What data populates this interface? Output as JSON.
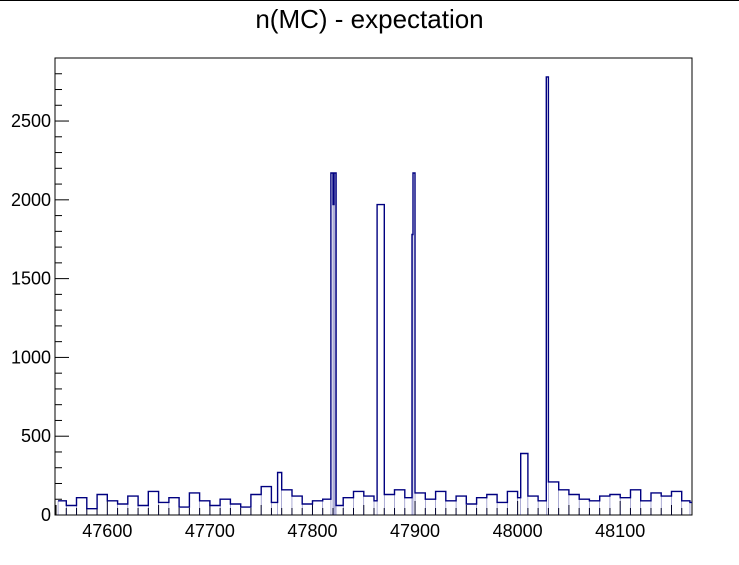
{
  "chart_data": {
    "type": "line",
    "title": "n(MC) - expectation",
    "xlabel": "",
    "ylabel": "",
    "xlim": [
      47549,
      48170
    ],
    "ylim": [
      0,
      2900
    ],
    "x_ticks": [
      47600,
      47700,
      47800,
      47900,
      48000,
      48100
    ],
    "y_ticks": [
      0,
      500,
      1000,
      1500,
      2000,
      2500
    ],
    "grid": false,
    "colors": {
      "series": "#000080",
      "axes": "#000000",
      "background": "#ffffff"
    },
    "series": [
      {
        "style": "histogram-step",
        "x": [
          47552,
          47560,
          47570,
          47580,
          47590,
          47600,
          47610,
          47620,
          47630,
          47640,
          47650,
          47660,
          47670,
          47680,
          47690,
          47700,
          47710,
          47720,
          47730,
          47740,
          47750,
          47760,
          47766,
          47770,
          47780,
          47790,
          47800,
          47810,
          47818,
          47820,
          47821,
          47822,
          47823,
          47830,
          47840,
          47850,
          47860,
          47863,
          47870,
          47880,
          47890,
          47897,
          47898,
          47900,
          47910,
          47920,
          47930,
          47940,
          47950,
          47960,
          47970,
          47980,
          47990,
          48000,
          48003,
          48010,
          48020,
          48028,
          48030,
          48040,
          48050,
          48060,
          48070,
          48080,
          48090,
          48100,
          48110,
          48120,
          48130,
          48140,
          48150,
          48160,
          48168
        ],
        "y": [
          90,
          60,
          110,
          40,
          130,
          90,
          70,
          120,
          60,
          150,
          80,
          110,
          50,
          140,
          90,
          60,
          100,
          70,
          50,
          130,
          180,
          80,
          270,
          160,
          120,
          70,
          90,
          100,
          2170,
          1970,
          2170,
          2170,
          60,
          110,
          150,
          120,
          90,
          1970,
          130,
          160,
          110,
          1780,
          2170,
          140,
          100,
          150,
          90,
          120,
          70,
          110,
          130,
          80,
          150,
          110,
          390,
          120,
          90,
          2780,
          210,
          160,
          130,
          100,
          90,
          120,
          130,
          110,
          160,
          90,
          140,
          120,
          150,
          90,
          80
        ]
      }
    ]
  }
}
